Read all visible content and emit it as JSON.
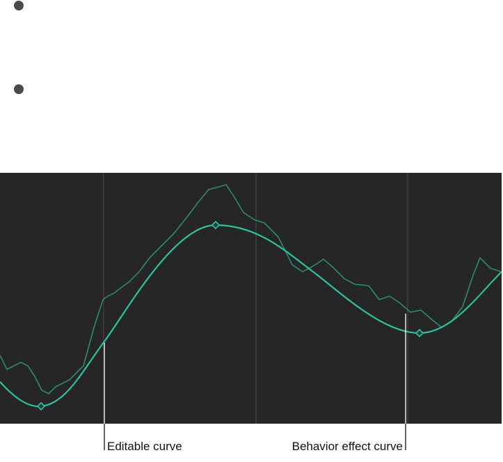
{
  "callouts": {
    "editable_curve": "Editable curve",
    "behavior_effect_curve": "Behavior effect curve"
  }
}
